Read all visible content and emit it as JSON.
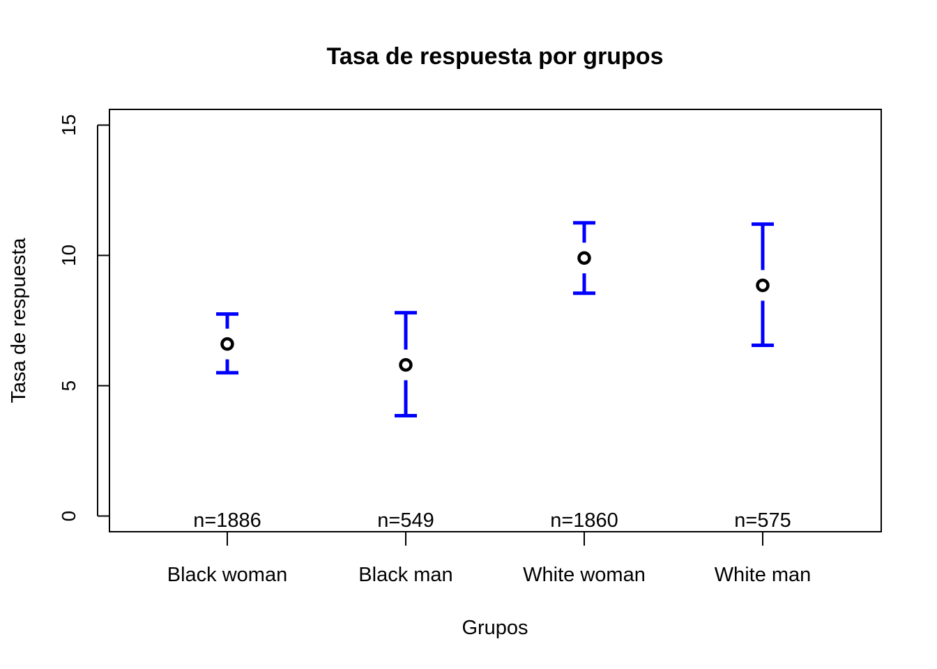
{
  "chart_data": {
    "type": "scatter",
    "title": "Tasa de respuesta por grupos",
    "xlabel": "Grupos",
    "ylabel": "Tasa de respuesta",
    "categories": [
      "Black woman",
      "Black man",
      "White woman",
      "White man"
    ],
    "values": [
      6.6,
      5.8,
      9.9,
      8.85
    ],
    "ci_lower": [
      5.5,
      3.85,
      8.55,
      6.55
    ],
    "ci_upper": [
      7.75,
      7.8,
      11.25,
      11.2
    ],
    "n_labels": [
      "n=1886",
      "n=549",
      "n=1860",
      "n=575"
    ],
    "ylim": [
      -0.6,
      15.6
    ],
    "yticks": [
      0,
      5,
      10,
      15
    ],
    "grid": false,
    "point_color": "#000000",
    "errorbar_color": "#0000ff"
  }
}
